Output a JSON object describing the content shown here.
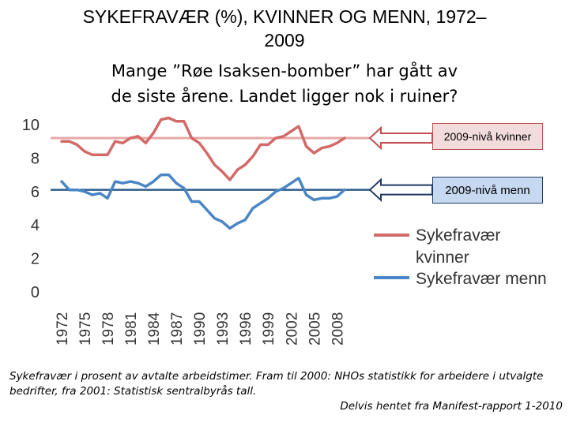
{
  "title": {
    "line1": "SYKEFRAVÆR (%), KVINNER OG MENN, 1972–",
    "line2": "2009"
  },
  "subtitle": {
    "line1": "Mange ”Røe Isaksen-bomber” har gått av",
    "line2": "de siste årene. Landet ligger nok i ruiner?"
  },
  "callouts": {
    "women": "2009-nivå kvinner",
    "men": "2009-nivå menn"
  },
  "footnote": {
    "text": "Sykefravær i prosent av avtalte arbeidstimer. Fram til 2000: NHOs statistikk for arbeidere i utvalgte bedrifter,  fra 2001: Statistisk sentralbyrås tall.",
    "source": "Delvis hentet fra Manifest-rapport 1-2010"
  },
  "chart_data": {
    "type": "line",
    "title": "SYKEFRAVÆR (%), KVINNER OG MENN, 1972–2009",
    "xlabel": "",
    "ylabel": "",
    "ylim": [
      0,
      10
    ],
    "yticks": [
      0,
      2,
      4,
      6,
      8,
      10
    ],
    "grid": false,
    "legend": "right",
    "x": [
      1972,
      1973,
      1974,
      1975,
      1976,
      1977,
      1978,
      1979,
      1980,
      1981,
      1982,
      1983,
      1984,
      1985,
      1986,
      1987,
      1988,
      1989,
      1990,
      1991,
      1992,
      1993,
      1994,
      1995,
      1996,
      1997,
      1998,
      1999,
      2000,
      2001,
      2002,
      2003,
      2004,
      2005,
      2006,
      2007,
      2008,
      2009
    ],
    "xtick_labels": [
      "1972",
      "1975",
      "1978",
      "1981",
      "1984",
      "1987",
      "1990",
      "1993",
      "1996",
      "1999",
      "2002",
      "2005",
      "2008"
    ],
    "x_label_years": [
      1972,
      1975,
      1978,
      1981,
      1984,
      1987,
      1990,
      1993,
      1996,
      1999,
      2002,
      2005,
      2008
    ],
    "reference_lines": [
      {
        "name": "2009-nivå kvinner",
        "value": 9.2,
        "color": "#e6a8a6"
      },
      {
        "name": "2009-nivå menn",
        "value": 6.1,
        "color": "#2e5d8a"
      }
    ],
    "series": [
      {
        "name": "Sykefravær kvinner",
        "color": "#d26a68",
        "values": [
          9.0,
          9.0,
          8.8,
          8.4,
          8.2,
          8.2,
          8.2,
          9.0,
          8.9,
          9.2,
          9.3,
          8.9,
          9.5,
          10.3,
          10.4,
          10.2,
          10.2,
          9.2,
          8.9,
          8.3,
          7.6,
          7.2,
          6.7,
          7.3,
          7.6,
          8.1,
          8.8,
          8.8,
          9.2,
          9.3,
          9.6,
          9.9,
          8.7,
          8.3,
          8.6,
          8.7,
          8.9,
          9.2
        ]
      },
      {
        "name": "Sykefravær menn",
        "color": "#4a86c6",
        "values": [
          6.6,
          6.1,
          6.1,
          6.0,
          5.8,
          5.9,
          5.6,
          6.6,
          6.5,
          6.6,
          6.5,
          6.3,
          6.6,
          7.0,
          7.0,
          6.5,
          6.2,
          5.4,
          5.4,
          4.9,
          4.4,
          4.2,
          3.8,
          4.1,
          4.3,
          5.0,
          5.3,
          5.6,
          6.0,
          6.2,
          6.5,
          6.8,
          5.8,
          5.5,
          5.6,
          5.6,
          5.7,
          6.1
        ]
      }
    ]
  }
}
